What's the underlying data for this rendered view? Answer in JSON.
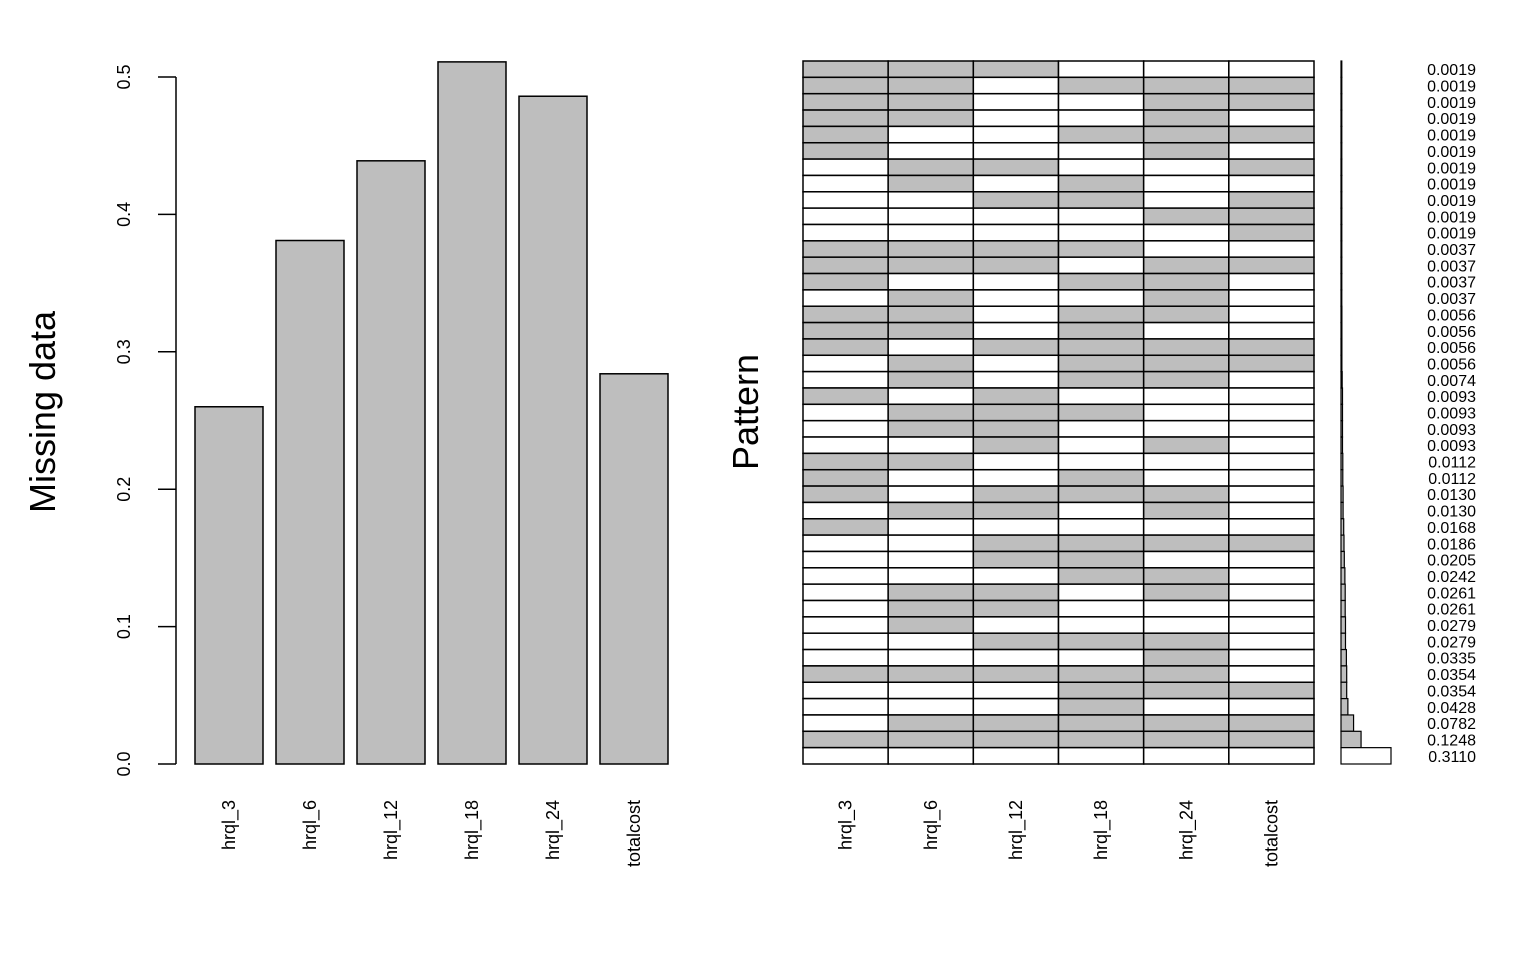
{
  "colors": {
    "missing": "#bebebe",
    "observed": "#ffffff",
    "stroke": "#000000"
  },
  "chart_data": [
    {
      "type": "bar",
      "ylabel": "Missing data",
      "ylim": [
        0,
        0.5
      ],
      "yticks": [
        "0.0",
        "0.1",
        "0.2",
        "0.3",
        "0.4",
        "0.5"
      ],
      "categories": [
        "hrql_3",
        "hrql_6",
        "hrql_12",
        "hrql_18",
        "hrql_24",
        "totalcost"
      ],
      "values": [
        0.26,
        0.381,
        0.439,
        0.511,
        0.486,
        0.284
      ],
      "grid": false
    },
    {
      "type": "heatmap",
      "ylabel": "Pattern",
      "columns": [
        "hrql_3",
        "hrql_6",
        "hrql_12",
        "hrql_18",
        "hrql_24",
        "totalcost"
      ],
      "patterns": [
        [
          1,
          1,
          1,
          0,
          0,
          0
        ],
        [
          1,
          1,
          0,
          1,
          1,
          1
        ],
        [
          1,
          1,
          0,
          0,
          1,
          1
        ],
        [
          1,
          1,
          0,
          0,
          1,
          0
        ],
        [
          1,
          0,
          0,
          1,
          1,
          1
        ],
        [
          1,
          0,
          0,
          0,
          1,
          0
        ],
        [
          0,
          1,
          1,
          0,
          0,
          1
        ],
        [
          0,
          1,
          0,
          1,
          0,
          0
        ],
        [
          0,
          0,
          1,
          1,
          0,
          1
        ],
        [
          0,
          0,
          0,
          0,
          1,
          1
        ],
        [
          0,
          0,
          0,
          0,
          0,
          1
        ],
        [
          1,
          1,
          1,
          1,
          0,
          0
        ],
        [
          1,
          1,
          1,
          0,
          1,
          1
        ],
        [
          1,
          0,
          0,
          1,
          1,
          0
        ],
        [
          0,
          1,
          0,
          0,
          1,
          0
        ],
        [
          1,
          1,
          0,
          1,
          1,
          0
        ],
        [
          1,
          1,
          0,
          1,
          0,
          0
        ],
        [
          1,
          0,
          1,
          1,
          1,
          1
        ],
        [
          0,
          1,
          0,
          1,
          1,
          1
        ],
        [
          0,
          1,
          0,
          1,
          1,
          0
        ],
        [
          1,
          0,
          1,
          0,
          0,
          0
        ],
        [
          0,
          1,
          1,
          1,
          0,
          0
        ],
        [
          0,
          1,
          1,
          0,
          0,
          0
        ],
        [
          0,
          0,
          1,
          0,
          1,
          0
        ],
        [
          1,
          1,
          0,
          0,
          0,
          0
        ],
        [
          1,
          0,
          0,
          1,
          0,
          0
        ],
        [
          1,
          0,
          1,
          1,
          1,
          0
        ],
        [
          0,
          1,
          1,
          0,
          1,
          0
        ],
        [
          1,
          0,
          0,
          0,
          0,
          0
        ],
        [
          0,
          0,
          1,
          1,
          1,
          1
        ],
        [
          0,
          0,
          1,
          1,
          0,
          0
        ],
        [
          0,
          0,
          0,
          1,
          1,
          0
        ],
        [
          0,
          1,
          1,
          0,
          1,
          0
        ],
        [
          0,
          1,
          1,
          0,
          0,
          0
        ],
        [
          0,
          1,
          0,
          0,
          0,
          0
        ],
        [
          0,
          0,
          1,
          1,
          1,
          0
        ],
        [
          0,
          0,
          0,
          0,
          1,
          0
        ],
        [
          1,
          1,
          1,
          1,
          1,
          0
        ],
        [
          0,
          0,
          0,
          1,
          1,
          1
        ],
        [
          0,
          0,
          0,
          1,
          0,
          0
        ],
        [
          0,
          1,
          1,
          1,
          1,
          1
        ],
        [
          1,
          1,
          1,
          1,
          1,
          1
        ],
        [
          0,
          0,
          0,
          0,
          0,
          0
        ]
      ],
      "frequencies": [
        "0.0019",
        "0.0019",
        "0.0019",
        "0.0019",
        "0.0019",
        "0.0019",
        "0.0019",
        "0.0019",
        "0.0019",
        "0.0019",
        "0.0019",
        "0.0037",
        "0.0037",
        "0.0037",
        "0.0037",
        "0.0056",
        "0.0056",
        "0.0056",
        "0.0056",
        "0.0074",
        "0.0093",
        "0.0093",
        "0.0093",
        "0.0093",
        "0.0112",
        "0.0112",
        "0.0130",
        "0.0130",
        "0.0168",
        "0.0186",
        "0.0205",
        "0.0242",
        "0.0261",
        "0.0261",
        "0.0279",
        "0.0279",
        "0.0335",
        "0.0354",
        "0.0354",
        "0.0428",
        "0.0782",
        "0.1248",
        "0.3110"
      ]
    }
  ]
}
